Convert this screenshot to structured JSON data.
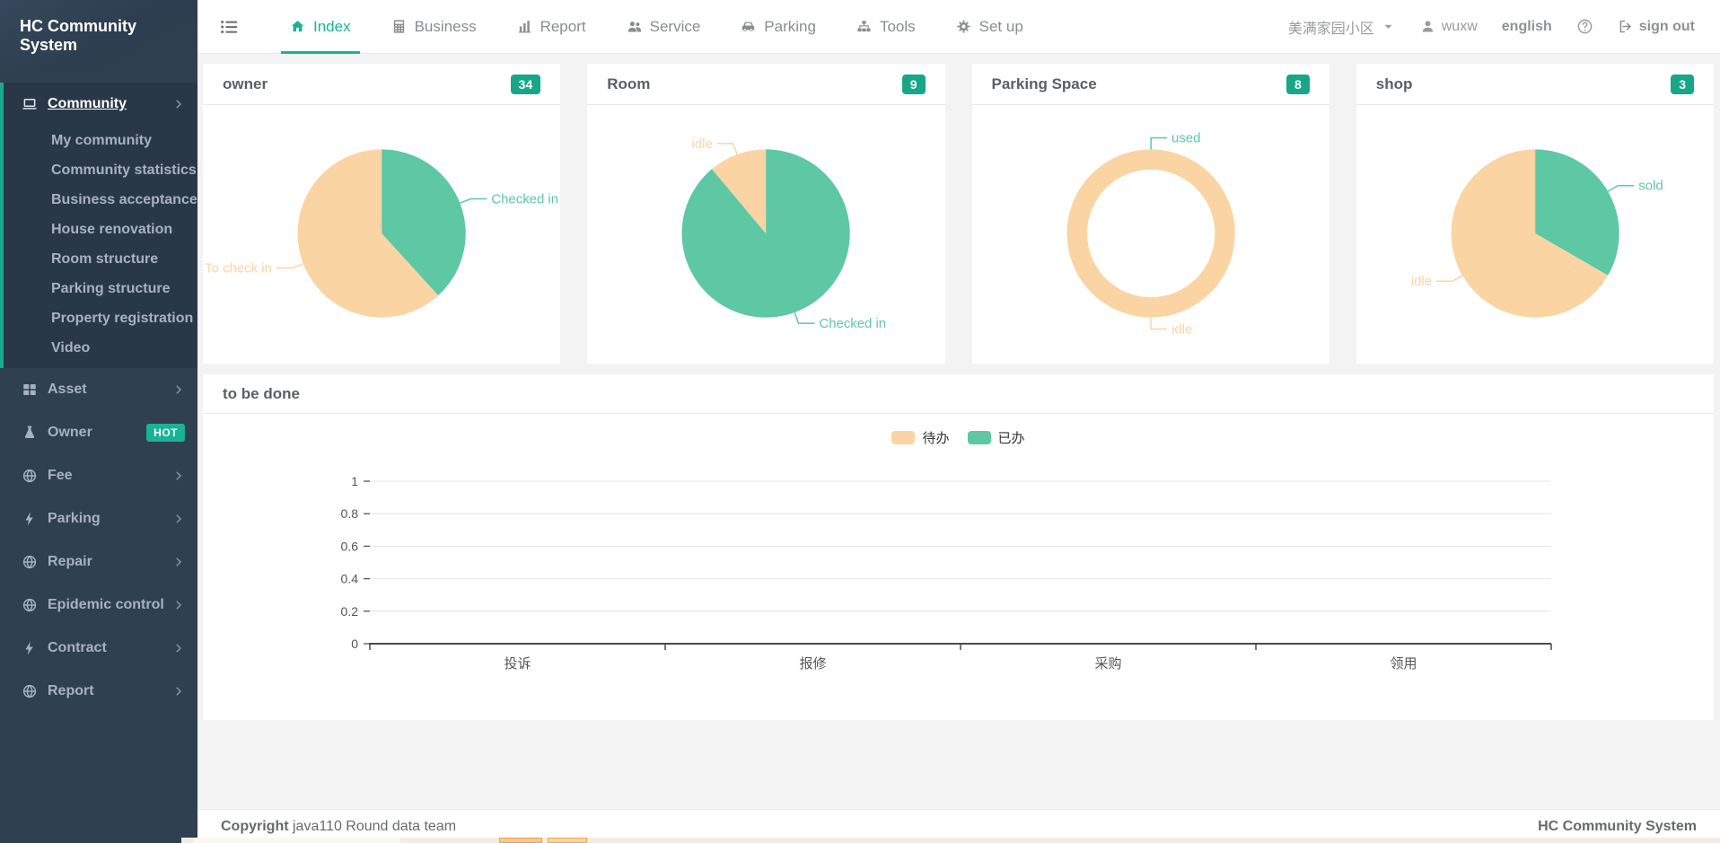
{
  "sidebar": {
    "title": "HC Community System",
    "community_menu": {
      "label": "Community",
      "items": [
        "My community",
        "Community statistics",
        "Business acceptance",
        "House renovation",
        "Room structure",
        "Parking structure",
        "Property registration",
        "Video"
      ]
    },
    "menus": [
      {
        "label": "Asset",
        "icon": "grid-icon"
      },
      {
        "label": "Owner",
        "icon": "flask-icon",
        "badge": "HOT"
      },
      {
        "label": "Fee",
        "icon": "globe-icon"
      },
      {
        "label": "Parking",
        "icon": "bolt-icon"
      },
      {
        "label": "Repair",
        "icon": "globe-icon"
      },
      {
        "label": "Epidemic control",
        "icon": "globe-icon"
      },
      {
        "label": "Contract",
        "icon": "bolt-icon"
      },
      {
        "label": "Report",
        "icon": "globe-icon"
      }
    ]
  },
  "navbar": {
    "tabs": [
      {
        "label": "Index",
        "icon": "home-icon",
        "active": true
      },
      {
        "label": "Business",
        "icon": "calculator-icon",
        "active": false
      },
      {
        "label": "Report",
        "icon": "bar-chart-icon",
        "active": false
      },
      {
        "label": "Service",
        "icon": "users-icon",
        "active": false
      },
      {
        "label": "Parking",
        "icon": "car-icon",
        "active": false
      },
      {
        "label": "Tools",
        "icon": "sitemap-icon",
        "active": false
      },
      {
        "label": "Set up",
        "icon": "gear-icon",
        "active": false
      }
    ],
    "community_selector": "美满家园小区",
    "username": "wuxw",
    "language": "english",
    "signout_label": "sign out"
  },
  "cards": [
    {
      "title": "owner",
      "badge": "34",
      "chart_data": {
        "type": "pie",
        "total": 34,
        "inner_radius_ratio": 0,
        "slices": [
          {
            "name": "Checked in",
            "value": 13,
            "color": "#5dc8a3"
          },
          {
            "name": "To check in",
            "value": 21,
            "color": "#fbd4a4"
          }
        ]
      }
    },
    {
      "title": "Room",
      "badge": "9",
      "chart_data": {
        "type": "pie",
        "total": 9,
        "inner_radius_ratio": 0,
        "slices": [
          {
            "name": "Checked in",
            "value": 8,
            "color": "#5dc8a3"
          },
          {
            "name": "idle",
            "value": 1,
            "color": "#fbd4a4"
          }
        ]
      }
    },
    {
      "title": "Parking Space",
      "badge": "8",
      "chart_data": {
        "type": "pie",
        "total": 8,
        "inner_radius_ratio": 0.76,
        "slices": [
          {
            "name": "used",
            "value": 0,
            "color": "#5dc8a3"
          },
          {
            "name": "idle",
            "value": 8,
            "color": "#fbd4a4"
          }
        ]
      }
    },
    {
      "title": "shop",
      "badge": "3",
      "chart_data": {
        "type": "pie",
        "total": 3,
        "inner_radius_ratio": 0,
        "slices": [
          {
            "name": "sold",
            "value": 1,
            "color": "#5dc8a3"
          },
          {
            "name": "idle",
            "value": 2,
            "color": "#fbd4a4"
          }
        ]
      }
    }
  ],
  "todo_panel": {
    "title": "to be done",
    "chart_data": {
      "type": "bar",
      "categories": [
        "投诉",
        "报修",
        "采购",
        "领用"
      ],
      "series": [
        {
          "name": "待办",
          "color": "#fbd4a4",
          "values": [
            0,
            0,
            0,
            0
          ]
        },
        {
          "name": "已办",
          "color": "#5dc8a3",
          "values": [
            0,
            0,
            0,
            0
          ]
        }
      ],
      "ylim": [
        0,
        1
      ],
      "yticks": [
        0,
        0.2,
        0.4,
        0.6,
        0.8,
        1
      ],
      "grid": true,
      "legend_position": "top-center"
    }
  },
  "footer": {
    "copyright_bold": "Copyright",
    "copyright_rest": "java110 Round data team",
    "brand": "HC Community System"
  },
  "colors": {
    "accent_green": "#1ab394",
    "badge_green": "#18a689",
    "active_border_green": "#19aa8d",
    "pie_green": "#5dc8a3",
    "pie_peach": "#fbd4a4",
    "sidebar_bg": "#2f4050",
    "sidebar_active_bg": "#293846",
    "content_bg": "#f3f3f4",
    "border": "#e7eaec"
  }
}
